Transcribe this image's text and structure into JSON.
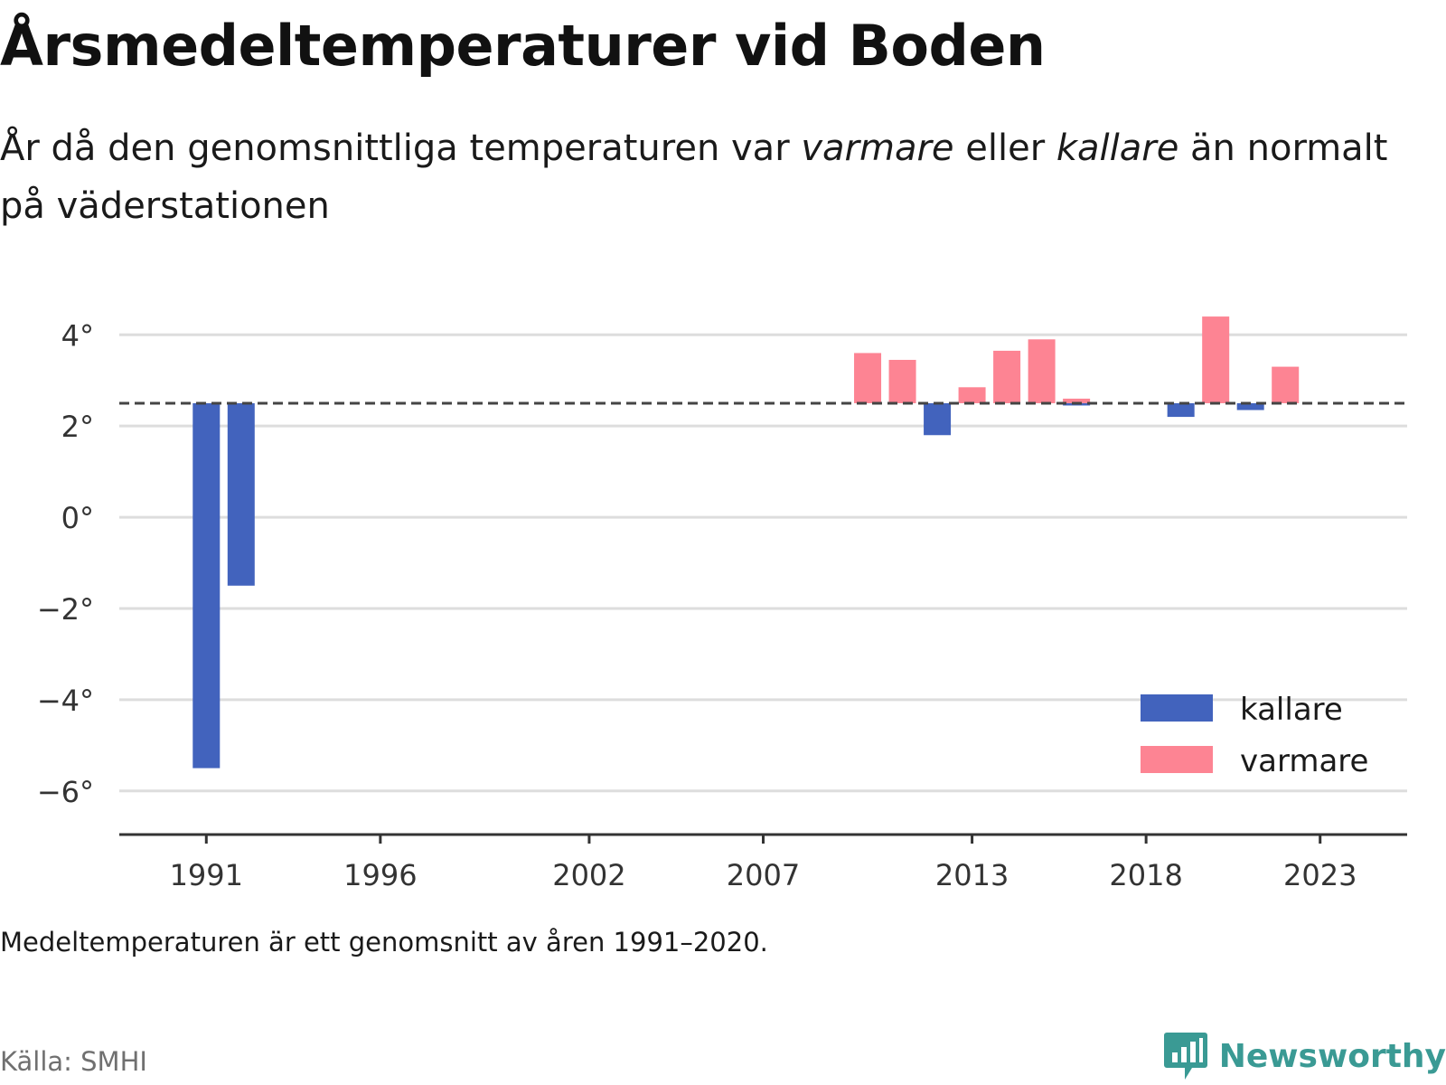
{
  "header": {
    "title": "Årsmedeltemperaturer vid Boden",
    "subtitle_part1": "År då den genomsnittliga temperaturen var ",
    "subtitle_em1": "varmare",
    "subtitle_part2": " eller ",
    "subtitle_em2": "kallare",
    "subtitle_part3": " än normalt på väderstationen"
  },
  "footer": {
    "note": "Medeltemperaturen är ett genomsnitt av åren 1991–2020.",
    "source": "Källa: SMHI",
    "brand": "Newsworthy"
  },
  "colors": {
    "kallare": "#4263bd",
    "varmare": "#fd8493",
    "reference_line": "#444444",
    "grid": "#dddddd",
    "axis": "#333333",
    "brand": "#3a9a94"
  },
  "chart_data": {
    "type": "bar",
    "title": "Årsmedeltemperaturer vid Boden",
    "reference_value": 2.5,
    "ylim": [
      -6.5,
      4.6
    ],
    "xlim": [
      1988.5,
      2025.5
    ],
    "y_ticks": [
      4,
      2,
      0,
      -2,
      -4,
      -6
    ],
    "y_tick_labels": [
      "4°",
      "2°",
      "0°",
      "−2°",
      "−4°",
      "−6°"
    ],
    "x_ticks": [
      1991,
      1996,
      2002,
      2007,
      2013,
      2018,
      2023
    ],
    "x_tick_labels": [
      "1991",
      "1996",
      "2002",
      "2007",
      "2013",
      "2018",
      "2023"
    ],
    "grid": true,
    "legend": {
      "position": "bottom-right",
      "entries": [
        "kallare",
        "varmare"
      ]
    },
    "series": [
      {
        "name": "kallare",
        "x": [
          1991,
          1992,
          2012,
          2016,
          2019,
          2021
        ],
        "values": [
          -5.5,
          -1.5,
          1.8,
          2.45,
          2.2,
          2.35
        ]
      },
      {
        "name": "varmare",
        "x": [
          2010,
          2011,
          2013,
          2014,
          2015,
          2016,
          2020,
          2022
        ],
        "values": [
          3.6,
          3.45,
          2.85,
          3.65,
          3.9,
          2.6,
          4.4,
          3.3
        ]
      }
    ]
  }
}
